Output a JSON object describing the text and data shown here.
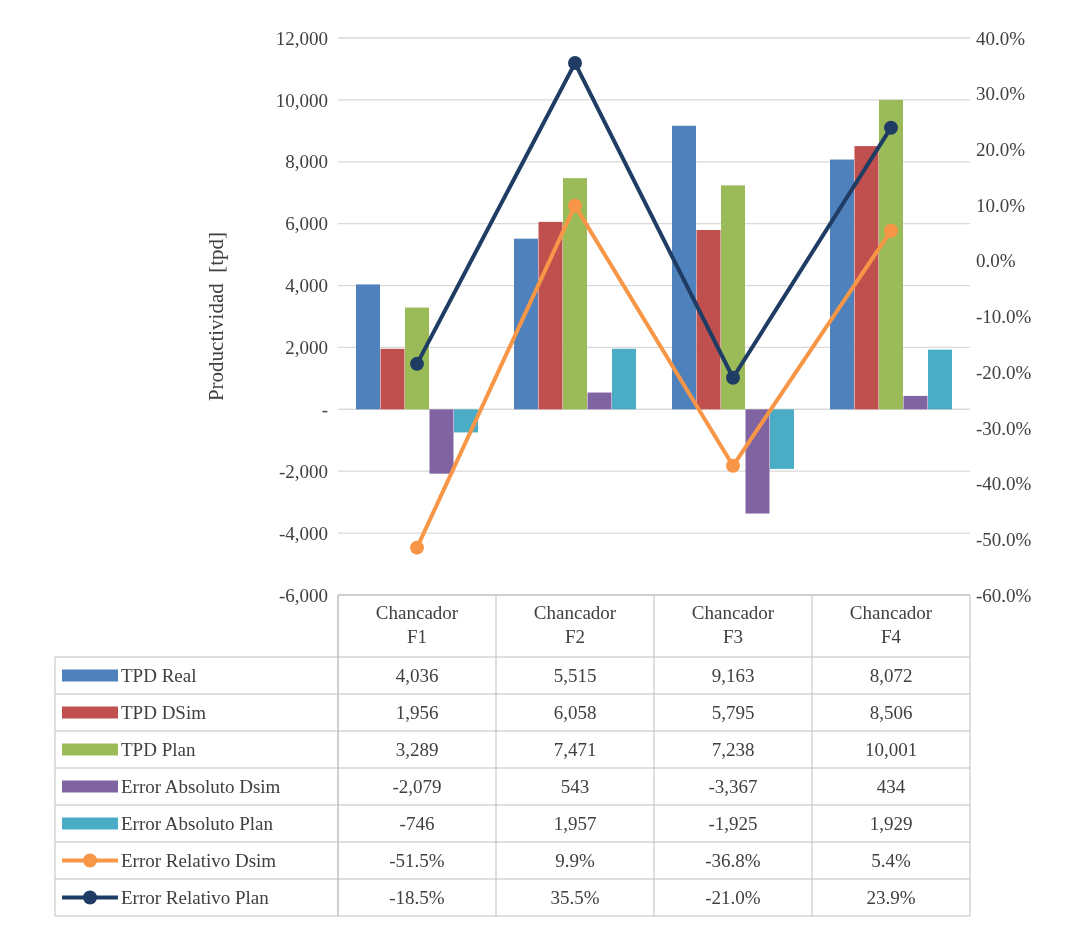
{
  "chart_data": {
    "type": "bar",
    "ylabel": "Productividad  [tpd]",
    "categories": [
      "Chancador F1",
      "Chancador F2",
      "Chancador F3",
      "Chancador F4"
    ],
    "ylim": [
      -6000,
      12000
    ],
    "yticks": [
      {
        "value": -6000,
        "label": "-6,000"
      },
      {
        "value": -4000,
        "label": "-4,000"
      },
      {
        "value": -2000,
        "label": "-2,000"
      },
      {
        "value": 0,
        "label": "-"
      },
      {
        "value": 2000,
        "label": "2,000"
      },
      {
        "value": 4000,
        "label": "4,000"
      },
      {
        "value": 6000,
        "label": "6,000"
      },
      {
        "value": 8000,
        "label": "8,000"
      },
      {
        "value": 10000,
        "label": "10,000"
      },
      {
        "value": 12000,
        "label": "12,000"
      }
    ],
    "y2lim": [
      -60,
      40
    ],
    "y2ticks": [
      {
        "value": -60,
        "label": "-60.0%"
      },
      {
        "value": -50,
        "label": "-50.0%"
      },
      {
        "value": -40,
        "label": "-40.0%"
      },
      {
        "value": -30,
        "label": "-30.0%"
      },
      {
        "value": -20,
        "label": "-20.0%"
      },
      {
        "value": -10,
        "label": "-10.0%"
      },
      {
        "value": 0,
        "label": "0.0%"
      },
      {
        "value": 10,
        "label": "10.0%"
      },
      {
        "value": 20,
        "label": "20.0%"
      },
      {
        "value": 30,
        "label": "30.0%"
      },
      {
        "value": 40,
        "label": "40.0%"
      }
    ],
    "grid": "y",
    "legend": "bottom",
    "series": [
      {
        "name": "TPD Real",
        "color": "#4f81bd",
        "values": [
          4036,
          5515,
          9163,
          8072
        ],
        "value_labels": [
          "4,036",
          "5,515",
          "9,163",
          "8,072"
        ]
      },
      {
        "name": "TPD DSim",
        "color": "#c0504d",
        "values": [
          1956,
          6058,
          5795,
          8506
        ],
        "value_labels": [
          "1,956",
          "6,058",
          "5,795",
          "8,506"
        ]
      },
      {
        "name": "TPD Plan",
        "color": "#9bbb59",
        "values": [
          3289,
          7471,
          7238,
          10001
        ],
        "value_labels": [
          "3,289",
          "7,471",
          "7,238",
          "10,001"
        ]
      },
      {
        "name": "Error Absoluto Dsim",
        "color": "#8064a2",
        "values": [
          -2079,
          543,
          -3367,
          434
        ],
        "value_labels": [
          "-2,079",
          "543",
          "-3,367",
          "434"
        ]
      },
      {
        "name": "Error Absoluto Plan",
        "color": "#4bacc6",
        "values": [
          -746,
          1957,
          -1925,
          1929
        ],
        "value_labels": [
          "-746",
          "1,957",
          "-1,925",
          "1,929"
        ]
      },
      {
        "name": "Error Relativo Dsim",
        "type": "line",
        "axis": "y2",
        "marker": "circle",
        "color": "#f79646",
        "values": [
          -51.5,
          9.9,
          -36.8,
          5.4
        ],
        "value_labels": [
          "-51.5%",
          "9.9%",
          "-36.8%",
          "5.4%"
        ]
      },
      {
        "name": "Error Relativo Plan",
        "type": "line",
        "axis": "y2",
        "marker": "circle",
        "color": "#1f3d64",
        "values": [
          -18.5,
          35.5,
          -21.0,
          23.9
        ],
        "value_labels": [
          "-18.5%",
          "35.5%",
          "-21.0%",
          "23.9%"
        ]
      }
    ]
  }
}
